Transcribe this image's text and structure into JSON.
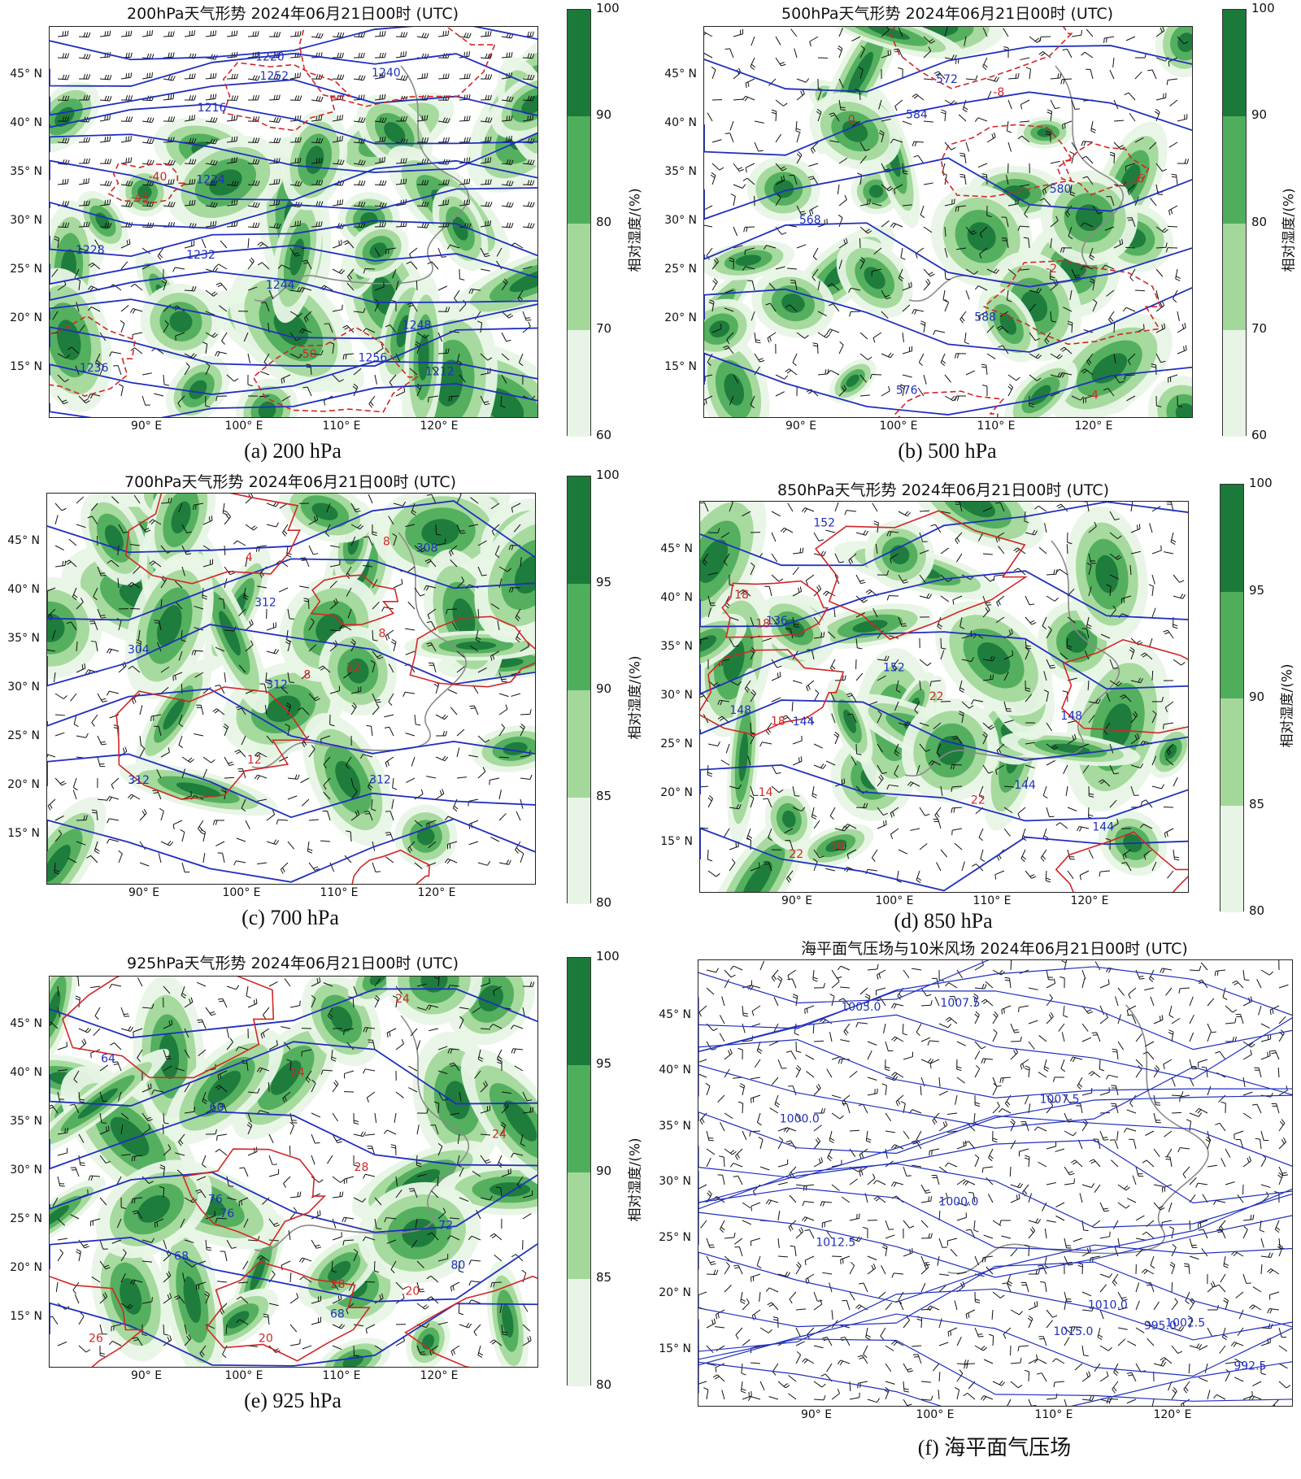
{
  "colors": {
    "rh_levels": [
      "#e8f5e6",
      "#a3d89a",
      "#4fae5c",
      "#1b7a3a"
    ],
    "height_contour": "#1f2fbf",
    "temp_contour": "#d22626",
    "coast": "#8a8a8a"
  },
  "axes": {
    "lat_labels": [
      "45° N",
      "40° N",
      "35° N",
      "30° N",
      "25° N",
      "20° N",
      "15° N"
    ],
    "lon_labels": [
      "90° E",
      "100° E",
      "110° E",
      "120° E"
    ]
  },
  "colorbar_label": "相对湿度/(%)",
  "panels": [
    {
      "id": "a",
      "title": "200hPa天气形势  2024年06月21日00时 (UTC)",
      "caption": "(a) 200 hPa",
      "colorbar_ticks": [
        "100",
        "90",
        "80",
        "70",
        "60"
      ],
      "contour_labels_blue": [
        "1212",
        "1216",
        "1228",
        "1224",
        "1232",
        "1236",
        "1244",
        "1240",
        "1248",
        "1252",
        "1256",
        "1220"
      ],
      "contour_labels_red": [
        "-50",
        "-45",
        "-40"
      ]
    },
    {
      "id": "b",
      "title": "500hPa天气形势  2024年06月21日00时 (UTC)",
      "caption": "(b) 500 hPa",
      "colorbar_ticks": [
        "100",
        "90",
        "80",
        "70",
        "60"
      ],
      "contour_labels_blue": [
        "568",
        "576",
        "572",
        "580",
        "584",
        "588"
      ],
      "contour_labels_red": [
        "-8",
        "-6",
        "-4",
        "-2",
        "0"
      ]
    },
    {
      "id": "c",
      "title": "700hPa天气形势  2024年06月21日00时 (UTC)",
      "caption": "(c) 700 hPa",
      "colorbar_ticks": [
        "100",
        "95",
        "90",
        "85",
        "80"
      ],
      "contour_labels_blue": [
        "304",
        "312",
        "312",
        "312",
        "308",
        "312"
      ],
      "contour_labels_red": [
        "8",
        "4",
        "8",
        "12",
        "8",
        "12"
      ]
    },
    {
      "id": "d",
      "title": "850hPa天气形势  2024年06月21日00时 (UTC)",
      "caption": "(d) 850 hPa",
      "colorbar_ticks": [
        "100",
        "95",
        "90",
        "85",
        "80"
      ],
      "contour_labels_blue": [
        "136",
        "148",
        "152",
        "144",
        "152",
        "144",
        "148",
        "144"
      ],
      "contour_labels_red": [
        "18",
        "14",
        "22",
        "18",
        "18",
        "22",
        "22",
        "18"
      ]
    },
    {
      "id": "e",
      "title": "925hPa天气形势  2024年06月21日00时 (UTC)",
      "caption": "(e) 925 hPa",
      "colorbar_ticks": [
        "100",
        "95",
        "90",
        "85",
        "80"
      ],
      "contour_labels_blue": [
        "64",
        "60",
        "76",
        "72",
        "68",
        "68",
        "80",
        "76"
      ],
      "contour_labels_red": [
        "24",
        "20",
        "28",
        "20",
        "24",
        "26",
        "28",
        "24"
      ]
    },
    {
      "id": "f",
      "title": "海平面气压场与10米风场  2024年06月21日00时 (UTC)",
      "caption": "(f) 海平面气压场",
      "contour_labels_blue": [
        "992.5",
        "995.0",
        "1000.0",
        "1005.0",
        "1007.5",
        "1002.5",
        "1010.0",
        "1012.5",
        "1015.0",
        "1000.0",
        "1007.5"
      ],
      "contour_labels_red": []
    }
  ]
}
